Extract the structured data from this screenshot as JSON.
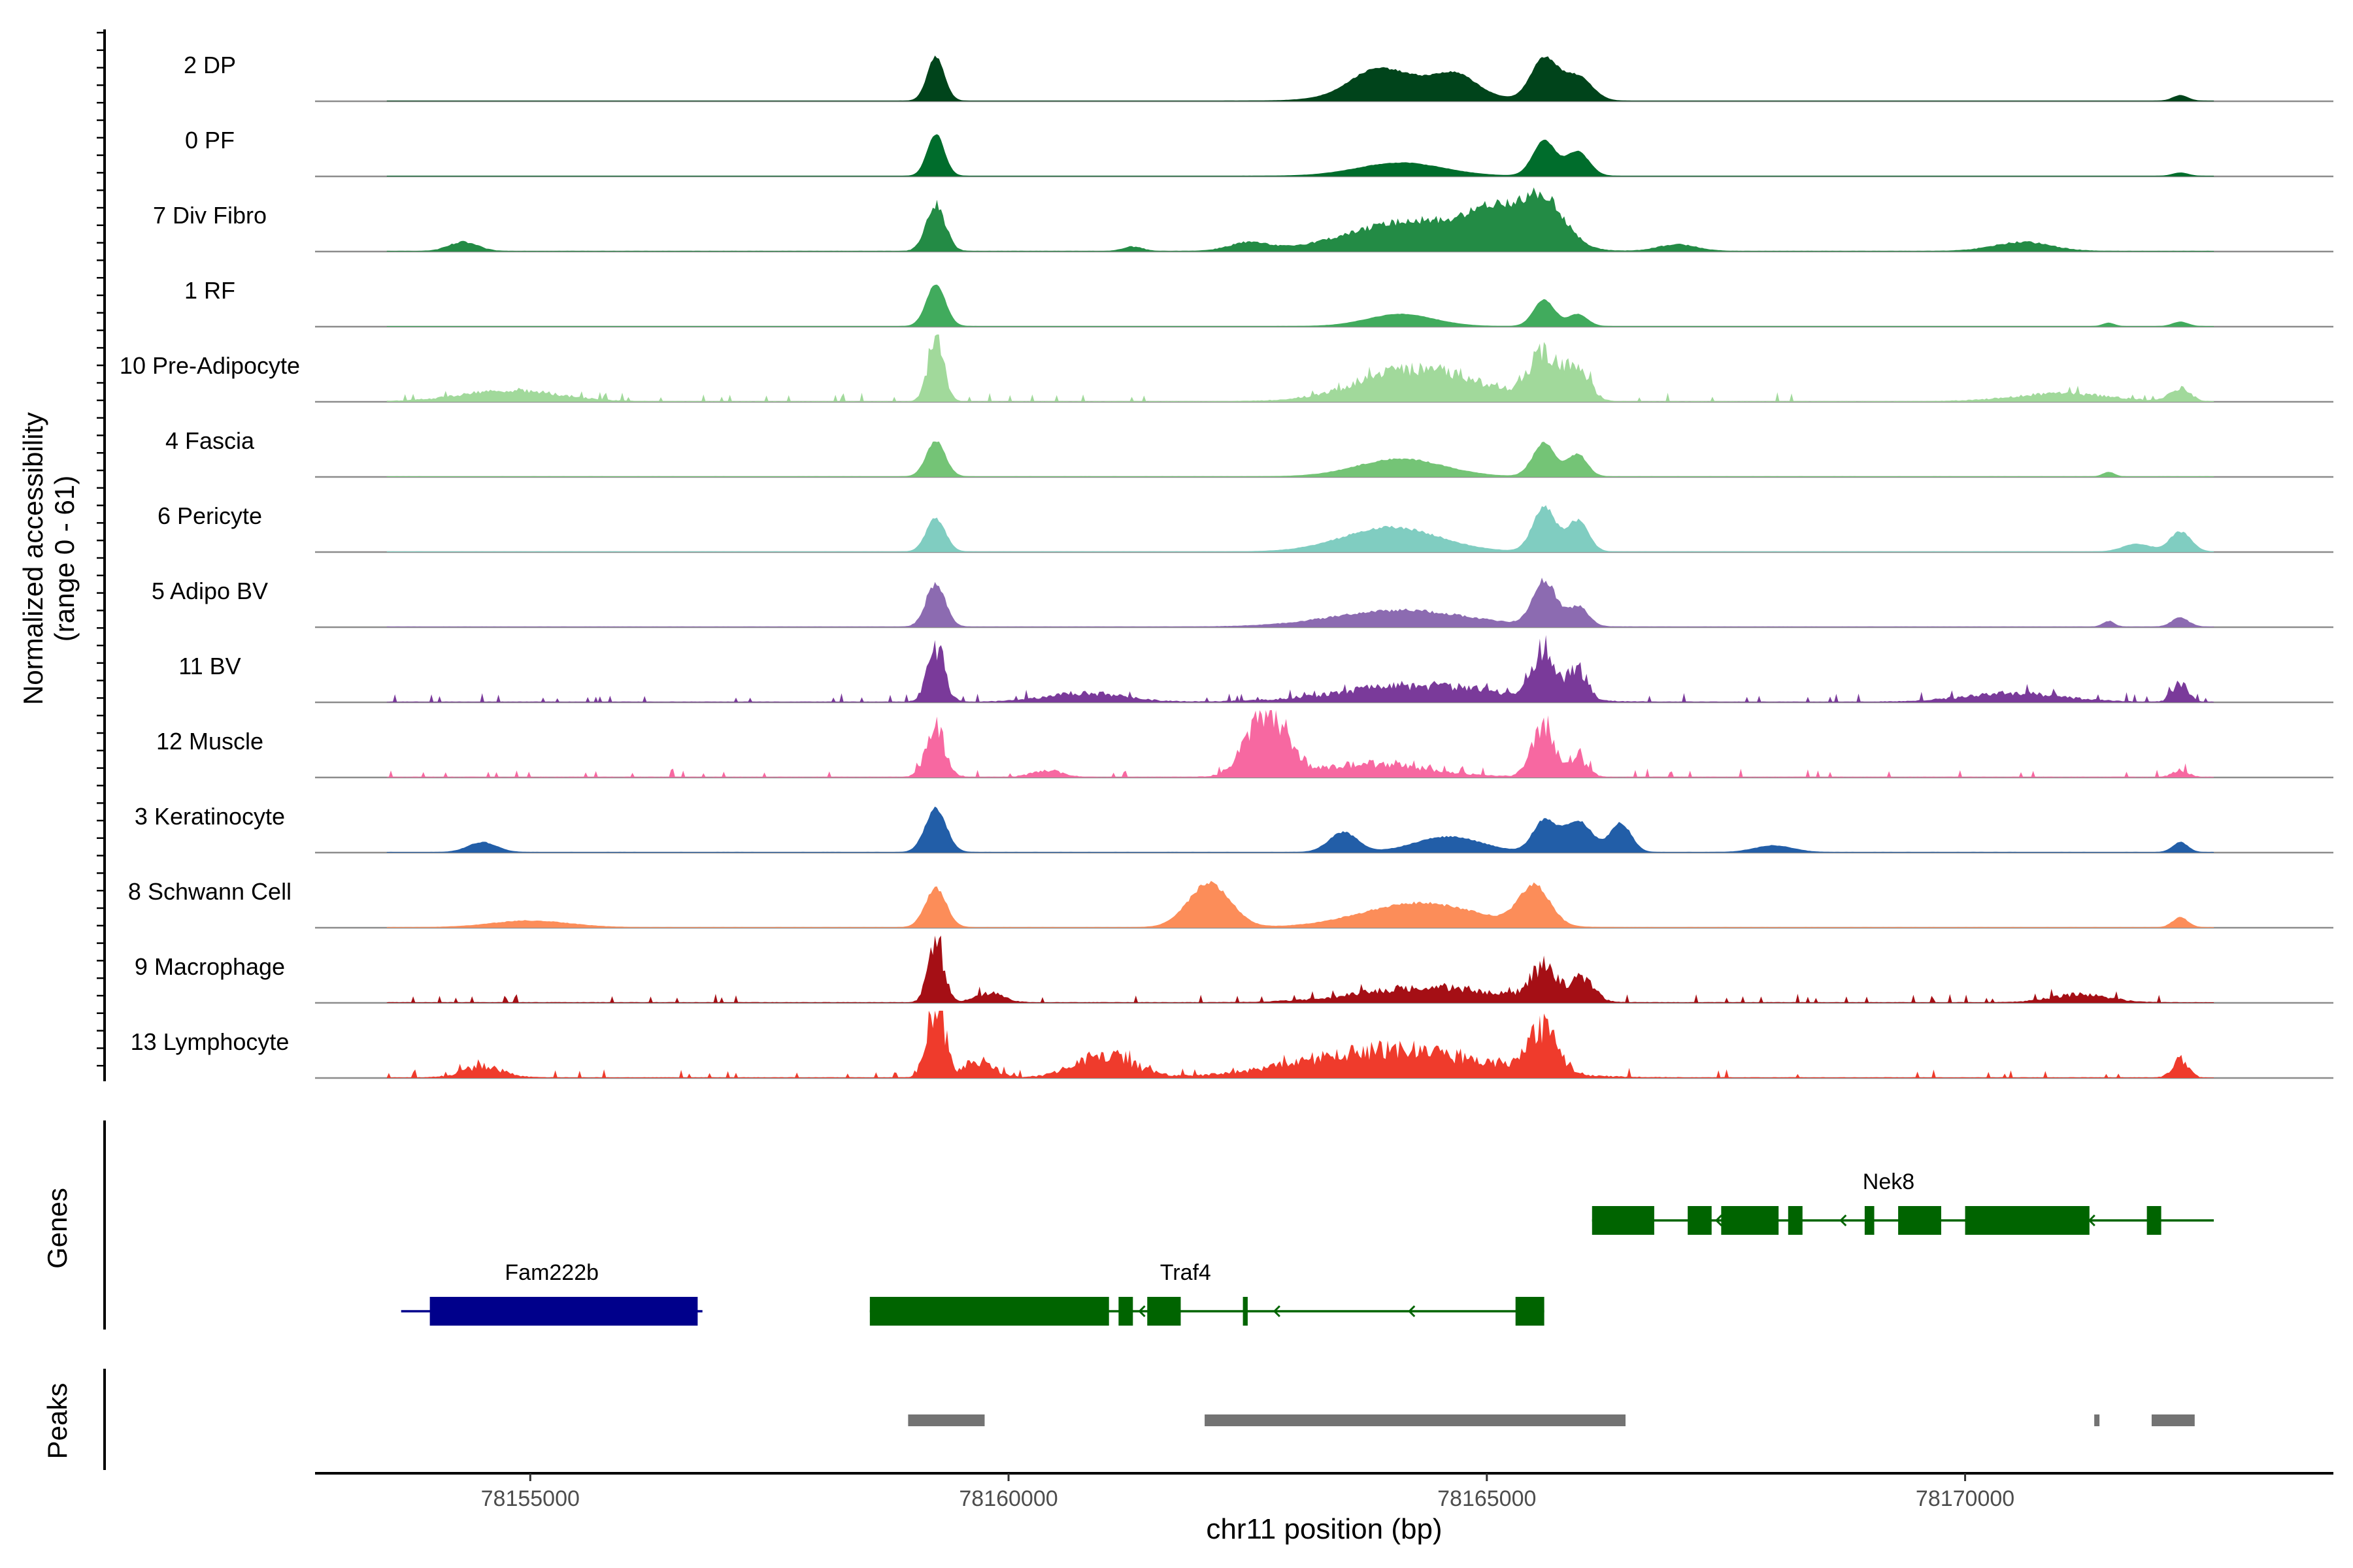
{
  "chart_data": {
    "type": "area",
    "title": "",
    "ylabel_line1": "Normalized accessibility",
    "ylabel_line2": "(range 0 - 61)",
    "ylim": [
      0,
      61
    ],
    "xlabel": "chr11 position (bp)",
    "xlim": [
      78152750,
      78173850
    ],
    "x_ticks": [
      78155000,
      78160000,
      78165000,
      78170000
    ],
    "x_tick_labels": [
      "78155000",
      "78160000",
      "78165000",
      "78170000"
    ],
    "series": [
      {
        "name": "2 DP",
        "color": "#00441B",
        "profile": [
          [
            78159240,
            40,
            90
          ],
          [
            78164200,
            20,
            500
          ],
          [
            78165600,
            38,
            140
          ],
          [
            78165950,
            22,
            150
          ],
          [
            78163800,
            14,
            250
          ],
          [
            78164700,
            13,
            200
          ],
          [
            78172250,
            5,
            80
          ]
        ],
        "noise": 0.06
      },
      {
        "name": "0 PF",
        "color": "#006D2C",
        "profile": [
          [
            78159240,
            38,
            90
          ],
          [
            78164100,
            12,
            450
          ],
          [
            78165600,
            32,
            120
          ],
          [
            78165950,
            22,
            120
          ],
          [
            78172250,
            3,
            80
          ]
        ],
        "noise": 0.05
      },
      {
        "name": "7 Div Fibro",
        "color": "#238B45",
        "profile": [
          [
            78159240,
            42,
            100
          ],
          [
            78164300,
            28,
            700
          ],
          [
            78165600,
            42,
            220
          ],
          [
            78165100,
            26,
            250
          ],
          [
            78154300,
            8,
            150
          ],
          [
            78162500,
            7,
            200
          ],
          [
            78167000,
            6,
            200
          ],
          [
            78170600,
            8,
            300
          ],
          [
            78161300,
            4,
            100
          ]
        ],
        "noise": 0.25
      },
      {
        "name": "1 RF",
        "color": "#41AB5D",
        "profile": [
          [
            78159240,
            38,
            100
          ],
          [
            78164100,
            11,
            350
          ],
          [
            78165600,
            24,
            110
          ],
          [
            78165950,
            11,
            100
          ],
          [
            78172250,
            4,
            80
          ],
          [
            78171500,
            3,
            60
          ]
        ],
        "noise": 0.05
      },
      {
        "name": "10 Pre-Adipocyte",
        "color": "#A1D99B",
        "profile": [
          [
            78159240,
            60,
            80
          ],
          [
            78164300,
            30,
            600
          ],
          [
            78165600,
            42,
            160
          ],
          [
            78165950,
            30,
            120
          ],
          [
            78154800,
            10,
            500
          ],
          [
            78171000,
            7,
            500
          ],
          [
            78172250,
            12,
            100
          ]
        ],
        "noise": 0.45
      },
      {
        "name": "4 Fascia",
        "color": "#74C476",
        "profile": [
          [
            78159240,
            32,
            100
          ],
          [
            78164100,
            16,
            450
          ],
          [
            78165600,
            30,
            120
          ],
          [
            78165950,
            20,
            100
          ],
          [
            78171500,
            4,
            60
          ]
        ],
        "noise": 0.1
      },
      {
        "name": "6 Pericyte",
        "color": "#80CDC1",
        "profile": [
          [
            78159240,
            30,
            100
          ],
          [
            78164000,
            22,
            500
          ],
          [
            78165600,
            40,
            120
          ],
          [
            78165950,
            28,
            110
          ],
          [
            78172250,
            18,
            110
          ],
          [
            78171800,
            7,
            150
          ]
        ],
        "noise": 0.12
      },
      {
        "name": "5 Adipo BV",
        "color": "#8C6BB1",
        "profile": [
          [
            78159240,
            40,
            100
          ],
          [
            78164100,
            15,
            700
          ],
          [
            78165600,
            42,
            120
          ],
          [
            78165950,
            18,
            110
          ],
          [
            78172250,
            8,
            90
          ],
          [
            78171500,
            5,
            60
          ]
        ],
        "noise": 0.2
      },
      {
        "name": "11 BV",
        "color": "#7A3A9A",
        "profile": [
          [
            78159240,
            50,
            90
          ],
          [
            78164300,
            15,
            800
          ],
          [
            78165600,
            50,
            110
          ],
          [
            78165950,
            28,
            100
          ],
          [
            78172250,
            18,
            80
          ],
          [
            78160800,
            8,
            400
          ],
          [
            78170500,
            8,
            500
          ]
        ],
        "noise": 0.6
      },
      {
        "name": "12 Muscle",
        "color": "#F768A1",
        "profile": [
          [
            78159240,
            44,
            100
          ],
          [
            78162700,
            62,
            200
          ],
          [
            78163800,
            12,
            600
          ],
          [
            78165600,
            46,
            120
          ],
          [
            78165950,
            18,
            100
          ],
          [
            78160400,
            6,
            150
          ],
          [
            78172250,
            6,
            80
          ]
        ],
        "noise": 0.6
      },
      {
        "name": "3 Keratinocyte",
        "color": "#225EA8",
        "profile": [
          [
            78159240,
            40,
            110
          ],
          [
            78165600,
            28,
            120
          ],
          [
            78165950,
            28,
            150
          ],
          [
            78166400,
            26,
            110
          ],
          [
            78163500,
            18,
            150
          ],
          [
            78164600,
            14,
            350
          ],
          [
            78154500,
            9,
            150
          ],
          [
            78172250,
            9,
            80
          ],
          [
            78168000,
            6,
            200
          ]
        ],
        "noise": 0.1
      },
      {
        "name": "8 Schwann Cell",
        "color": "#FC8D59",
        "profile": [
          [
            78159240,
            35,
            110
          ],
          [
            78162100,
            40,
            220
          ],
          [
            78164300,
            22,
            600
          ],
          [
            78165500,
            36,
            160
          ],
          [
            78155000,
            6,
            400
          ],
          [
            78172250,
            9,
            80
          ]
        ],
        "noise": 0.12
      },
      {
        "name": "9 Macrophage",
        "color": "#A50F15",
        "profile": [
          [
            78159240,
            60,
            80
          ],
          [
            78164400,
            14,
            700
          ],
          [
            78165600,
            30,
            140
          ],
          [
            78166000,
            20,
            120
          ],
          [
            78159800,
            8,
            150
          ],
          [
            78171200,
            7,
            300
          ]
        ],
        "noise": 0.55
      },
      {
        "name": "13 Lymphocyte",
        "color": "#EF3B2C",
        "profile": [
          [
            78159240,
            72,
            90
          ],
          [
            78164000,
            25,
            900
          ],
          [
            78165600,
            40,
            150
          ],
          [
            78161000,
            20,
            300
          ],
          [
            78159700,
            15,
            150
          ],
          [
            78154500,
            10,
            200
          ],
          [
            78172250,
            16,
            80
          ]
        ],
        "noise": 0.7
      }
    ],
    "genes_track_label": "Genes",
    "genes": [
      {
        "name": "Fam222b",
        "strand": "+",
        "color": "#00008B",
        "start": 78153650,
        "end": 78156800,
        "exons": [
          [
            78153950,
            78156750
          ]
        ]
      },
      {
        "name": "Traf4",
        "strand": "-",
        "color": "#006400",
        "start": 78158550,
        "end": 78165600,
        "exons": [
          [
            78158550,
            78161050
          ],
          [
            78161150,
            78161300
          ],
          [
            78161450,
            78161800
          ],
          [
            78162450,
            78162500
          ],
          [
            78165300,
            78165600
          ]
        ]
      },
      {
        "name": "Nek8",
        "strand": "-",
        "color": "#006400",
        "start": 78166100,
        "end": 78172600,
        "exons": [
          [
            78166100,
            78166750
          ],
          [
            78167100,
            78167350
          ],
          [
            78167450,
            78168050
          ],
          [
            78168150,
            78168300
          ],
          [
            78168950,
            78169050
          ],
          [
            78169300,
            78169750
          ],
          [
            78170000,
            78171300
          ],
          [
            78171900,
            78172050
          ]
        ]
      }
    ],
    "peaks_track_label": "Peaks",
    "peaks": [
      [
        78158950,
        78159750
      ],
      [
        78162050,
        78166450
      ],
      [
        78171350,
        78171400
      ],
      [
        78171950,
        78172400
      ]
    ]
  }
}
